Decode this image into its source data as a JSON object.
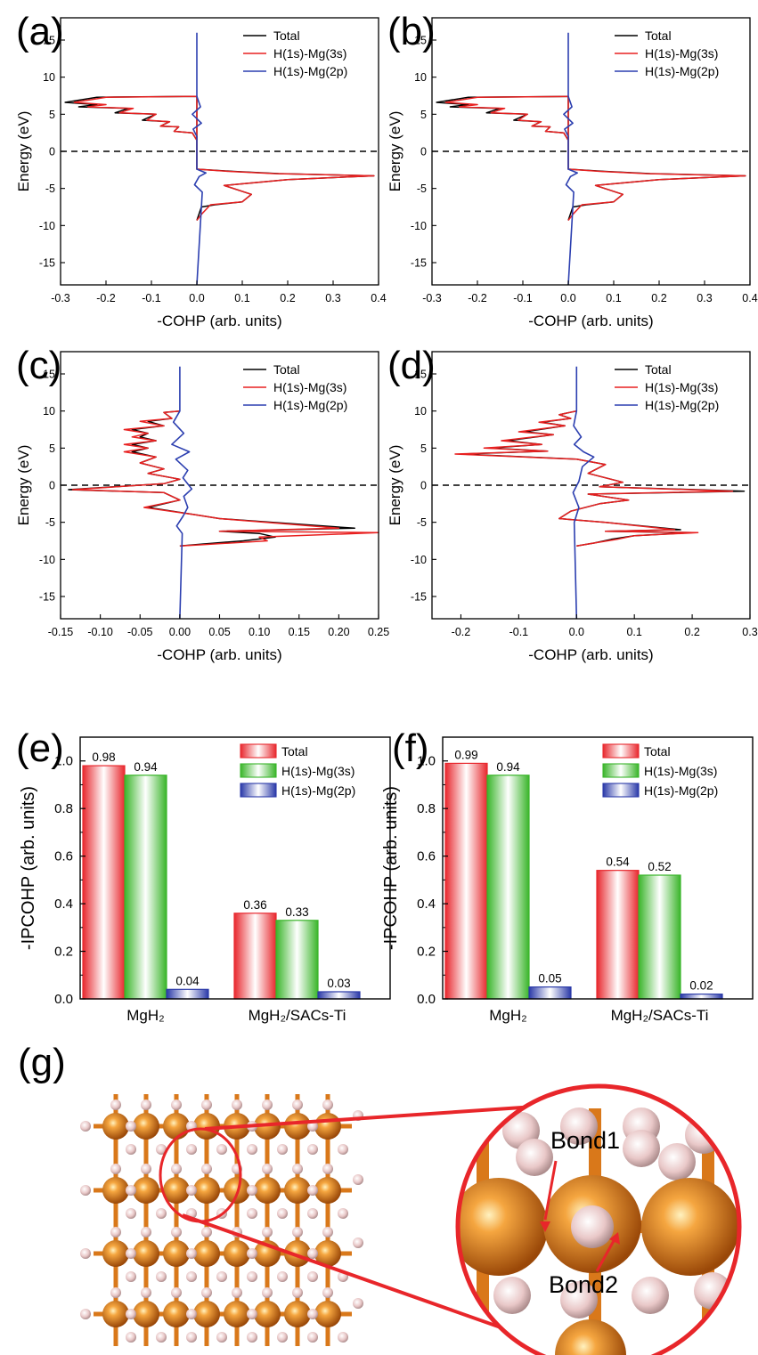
{
  "figure": {
    "panels": [
      "(a)",
      "(b)",
      "(c)",
      "(d)",
      "(e)",
      "(f)",
      "(g)"
    ]
  },
  "colors": {
    "total": "#000000",
    "s": "#e82020",
    "p": "#2c3fb0",
    "bar_red": "#e8282e",
    "bar_green": "#3ab52a",
    "bar_blue": "#2a39a8",
    "mg_atom": "#d9781a",
    "h_atom": "#e9c8c8",
    "zoom": "#e8262a"
  },
  "chart_data": [
    {
      "panel": "(a)",
      "type": "line",
      "xlabel": "-COHP (arb. units)",
      "ylabel": "Energy (eV)",
      "xlim": [
        -0.3,
        0.4
      ],
      "ylim": [
        -18,
        18
      ],
      "xticks": [
        "-0.3",
        "-0.2",
        "-0.1",
        "0.0",
        "0.1",
        "0.2",
        "0.3",
        "0.4"
      ],
      "yticks": [
        "15",
        "10",
        "5",
        "0",
        "-5",
        "-10",
        "-15"
      ],
      "fermi_level": 0,
      "legend": [
        "Total",
        "H(1s)-Mg(3s)",
        "H(1s)-Mg(2p)"
      ],
      "series": [
        {
          "name": "Total",
          "x": [
            0,
            -0.01,
            -0.05,
            -0.04,
            -0.08,
            -0.06,
            -0.12,
            -0.09,
            -0.18,
            -0.15,
            -0.26,
            -0.22,
            -0.29,
            -0.22,
            0,
            0,
            0.08,
            0.18,
            0.39,
            0.2,
            0.06,
            0.12,
            0.1,
            0.04,
            0.01,
            0
          ],
          "y": [
            1.5,
            2.5,
            2.7,
            3.3,
            3.4,
            4.0,
            4.2,
            5.0,
            5.2,
            5.8,
            6.0,
            6.3,
            6.6,
            7.3,
            7.4,
            -2.4,
            -2.7,
            -3.0,
            -3.3,
            -3.8,
            -4.6,
            -5.8,
            -6.8,
            -7.2,
            -7.5,
            -9.3
          ]
        },
        {
          "name": "H(1s)-Mg(3s)",
          "x": [
            0,
            -0.01,
            -0.05,
            -0.04,
            -0.08,
            -0.06,
            -0.11,
            -0.09,
            -0.17,
            -0.14,
            -0.24,
            -0.2,
            -0.27,
            -0.2,
            0,
            0,
            0.07,
            0.17,
            0.39,
            0.2,
            0.06,
            0.12,
            0.1,
            0.03,
            0.01,
            0
          ],
          "y": [
            1.5,
            2.5,
            2.7,
            3.3,
            3.4,
            4.0,
            4.2,
            5.0,
            5.2,
            5.8,
            6.0,
            6.3,
            6.6,
            7.3,
            7.4,
            -2.4,
            -2.7,
            -3.0,
            -3.3,
            -3.8,
            -4.6,
            -5.8,
            -6.8,
            -7.2,
            -8.5,
            -9.3
          ]
        },
        {
          "name": "H(1s)-Mg(2p)",
          "x": [
            0,
            0,
            0.008,
            -0.01,
            0.01,
            -0.008,
            0,
            0,
            0.02,
            0.005,
            -0.005,
            0.012,
            0
          ],
          "y": [
            16,
            7.4,
            6.0,
            5.0,
            3.8,
            3.0,
            2.0,
            -2.4,
            -2.9,
            -3.4,
            -4.5,
            -5.5,
            -18
          ]
        }
      ]
    },
    {
      "panel": "(b)",
      "type": "line",
      "xlabel": "-COHP (arb. units)",
      "ylabel": "Energy (eV)",
      "xlim": [
        -0.3,
        0.4
      ],
      "ylim": [
        -18,
        18
      ],
      "xticks": [
        "-0.3",
        "-0.2",
        "-0.1",
        "0.0",
        "0.1",
        "0.2",
        "0.3",
        "0.4"
      ],
      "yticks": [
        "15",
        "10",
        "5",
        "0",
        "-5",
        "-10",
        "-15"
      ],
      "fermi_level": 0,
      "legend": [
        "Total",
        "H(1s)-Mg(3s)",
        "H(1s)-Mg(2p)"
      ],
      "series": [
        {
          "name": "Total",
          "x": [
            0,
            -0.01,
            -0.05,
            -0.04,
            -0.08,
            -0.06,
            -0.12,
            -0.09,
            -0.18,
            -0.15,
            -0.26,
            -0.22,
            -0.29,
            -0.22,
            0,
            0,
            0.08,
            0.18,
            0.39,
            0.2,
            0.06,
            0.12,
            0.1,
            0.04,
            0.01,
            0
          ],
          "y": [
            1.5,
            2.5,
            2.7,
            3.3,
            3.4,
            4.0,
            4.2,
            5.0,
            5.2,
            5.8,
            6.0,
            6.3,
            6.6,
            7.3,
            7.4,
            -2.4,
            -2.7,
            -3.0,
            -3.3,
            -3.8,
            -4.6,
            -5.8,
            -6.8,
            -7.2,
            -7.5,
            -9.3
          ]
        },
        {
          "name": "H(1s)-Mg(3s)",
          "x": [
            0,
            -0.01,
            -0.05,
            -0.04,
            -0.08,
            -0.06,
            -0.11,
            -0.09,
            -0.17,
            -0.14,
            -0.24,
            -0.2,
            -0.27,
            -0.2,
            0,
            0,
            0.07,
            0.17,
            0.39,
            0.2,
            0.06,
            0.12,
            0.1,
            0.03,
            0.01,
            0
          ],
          "y": [
            1.5,
            2.5,
            2.7,
            3.3,
            3.4,
            4.0,
            4.2,
            5.0,
            5.2,
            5.8,
            6.0,
            6.3,
            6.6,
            7.3,
            7.4,
            -2.4,
            -2.7,
            -3.0,
            -3.3,
            -3.8,
            -4.6,
            -5.8,
            -6.8,
            -7.2,
            -8.5,
            -9.3
          ]
        },
        {
          "name": "H(1s)-Mg(2p)",
          "x": [
            0,
            0,
            0.008,
            -0.01,
            0.01,
            -0.008,
            0,
            0,
            0.02,
            0.005,
            -0.005,
            0.012,
            0
          ],
          "y": [
            16,
            7.4,
            6.0,
            5.0,
            3.8,
            3.0,
            2.0,
            -2.4,
            -2.9,
            -3.4,
            -4.5,
            -5.5,
            -18
          ]
        }
      ]
    },
    {
      "panel": "(c)",
      "type": "line",
      "xlabel": "-COHP (arb. units)",
      "ylabel": "Energy (eV)",
      "xlim": [
        -0.15,
        0.25
      ],
      "ylim": [
        -18,
        18
      ],
      "xticks": [
        "-0.15",
        "-0.10",
        "-0.05",
        "0.00",
        "0.05",
        "0.10",
        "0.15",
        "0.20",
        "0.25"
      ],
      "yticks": [
        "15",
        "10",
        "5",
        "0",
        "-5",
        "-10",
        "-15"
      ],
      "fermi_level": 0,
      "legend": [
        "Total",
        "H(1s)-Mg(3s)",
        "H(1s)-Mg(2p)"
      ],
      "series": [
        {
          "name": "Total",
          "x": [
            0,
            -0.02,
            -0.01,
            -0.04,
            -0.02,
            -0.06,
            -0.04,
            -0.05,
            -0.03,
            -0.06,
            -0.04,
            -0.06,
            -0.03,
            -0.05,
            -0.02,
            -0.04,
            0,
            -0.02,
            -0.14,
            -0.02,
            0,
            -0.04,
            0.02,
            0.05,
            0.22,
            0.05,
            0.1,
            0.12,
            0.08,
            0.02,
            0
          ],
          "y": [
            10,
            9.8,
            9.0,
            8.6,
            8.0,
            7.5,
            7.0,
            6.5,
            6.0,
            5.5,
            5.0,
            4.5,
            3.8,
            3.0,
            2.2,
            1.6,
            0.8,
            0.2,
            -0.6,
            -1.0,
            -2.0,
            -3.0,
            -4.0,
            -4.5,
            -5.8,
            -6.2,
            -6.5,
            -7.0,
            -7.5,
            -8.0,
            -8.2
          ]
        },
        {
          "name": "H(1s)-Mg(3s)",
          "x": [
            0,
            -0.02,
            -0.01,
            -0.05,
            -0.02,
            -0.07,
            -0.04,
            -0.06,
            -0.03,
            -0.07,
            -0.04,
            -0.07,
            -0.03,
            -0.05,
            -0.02,
            -0.04,
            0,
            -0.02,
            -0.135,
            -0.02,
            0,
            -0.045,
            0.02,
            0.05,
            0.2,
            0.05,
            0.25,
            0.1,
            0.11,
            0.03,
            0
          ],
          "y": [
            10,
            9.8,
            9.0,
            8.6,
            8.0,
            7.5,
            7.0,
            6.5,
            6.0,
            5.5,
            5.0,
            4.5,
            3.8,
            3.0,
            2.2,
            1.6,
            0.8,
            0.2,
            -0.6,
            -1.0,
            -2.0,
            -3.0,
            -4.0,
            -4.5,
            -5.8,
            -6.2,
            -6.4,
            -7.0,
            -7.5,
            -8.0,
            -8.2
          ]
        },
        {
          "name": "H(1s)-Mg(2p)",
          "x": [
            0,
            0,
            -0.008,
            0.005,
            -0.01,
            0.012,
            -0.005,
            0.01,
            0.004,
            0.015,
            0.005,
            0.01,
            0.004,
            -0.004,
            0.003,
            0
          ],
          "y": [
            16,
            10,
            8.5,
            7.0,
            5.5,
            4.5,
            3.5,
            2.0,
            1.0,
            -0.5,
            -1.5,
            -3.0,
            -4.2,
            -5.5,
            -6.5,
            -18
          ]
        }
      ]
    },
    {
      "panel": "(d)",
      "type": "line",
      "xlabel": "-COHP (arb. units)",
      "ylabel": "Energy (eV)",
      "xlim": [
        -0.25,
        0.3
      ],
      "ylim": [
        -18,
        18
      ],
      "xticks": [
        "-0.2",
        "-0.1",
        "0.0",
        "0.1",
        "0.2",
        "0.3"
      ],
      "yticks": [
        "15",
        "10",
        "5",
        "0",
        "-5",
        "-10",
        "-15"
      ],
      "fermi_level": 0,
      "legend": [
        "Total",
        "H(1s)-Mg(3s)",
        "H(1s)-Mg(2p)"
      ],
      "series": [
        {
          "name": "Total",
          "x": [
            0,
            -0.03,
            -0.01,
            -0.06,
            -0.02,
            -0.09,
            -0.04,
            -0.12,
            -0.06,
            -0.15,
            -0.05,
            -0.2,
            0,
            0.05,
            0.02,
            0.08,
            0.04,
            0.29,
            0.02,
            0.09,
            0.04,
            -0.01,
            -0.03,
            0.05,
            0.18,
            0.05,
            0.2,
            0.1,
            0.06,
            0.03,
            0
          ],
          "y": [
            10,
            9.5,
            9.0,
            8.5,
            8.0,
            7.2,
            6.8,
            6.0,
            5.5,
            5.0,
            4.6,
            4.2,
            3.5,
            2.8,
            1.6,
            0.4,
            -0.2,
            -0.8,
            -1.2,
            -2.0,
            -2.5,
            -3.5,
            -4.5,
            -5.0,
            -6.0,
            -6.2,
            -6.4,
            -6.8,
            -7.3,
            -7.8,
            -8.2
          ]
        },
        {
          "name": "H(1s)-Mg(3s)",
          "x": [
            0,
            -0.03,
            -0.01,
            -0.065,
            -0.02,
            -0.1,
            -0.04,
            -0.13,
            -0.06,
            -0.16,
            -0.05,
            -0.21,
            0,
            0.05,
            0.02,
            0.08,
            0.04,
            0.27,
            0.02,
            0.09,
            0.04,
            -0.01,
            -0.03,
            0.05,
            0.17,
            0.05,
            0.21,
            0.1,
            0.07,
            0.03,
            0
          ],
          "y": [
            10,
            9.5,
            9.0,
            8.5,
            8.0,
            7.2,
            6.8,
            6.0,
            5.5,
            5.0,
            4.6,
            4.2,
            3.5,
            2.8,
            1.6,
            0.4,
            -0.2,
            -0.8,
            -1.2,
            -2.0,
            -2.5,
            -3.5,
            -4.5,
            -5.0,
            -6.0,
            -6.2,
            -6.4,
            -6.8,
            -7.3,
            -7.8,
            -8.2
          ]
        },
        {
          "name": "H(1s)-Mg(2p)",
          "x": [
            0,
            0,
            -0.005,
            0.008,
            -0.004,
            0.012,
            0.03,
            0.01,
            0.004,
            -0.006,
            0.004,
            -0.004,
            0
          ],
          "y": [
            16,
            10,
            8.0,
            6.5,
            5.5,
            4.5,
            3.8,
            2.5,
            0.5,
            -1.0,
            -3.0,
            -5.0,
            -18
          ]
        }
      ]
    },
    {
      "panel": "(e)",
      "type": "bar",
      "ylabel": "-IPCOHP (arb. units)",
      "ylim": [
        0,
        1.1
      ],
      "yticks": [
        "0.0",
        "0.2",
        "0.4",
        "0.6",
        "0.8",
        "1.0"
      ],
      "categories": [
        "MgH₂",
        "MgH₂/SACs-Ti"
      ],
      "series": [
        {
          "name": "Total",
          "values": [
            0.98,
            0.36
          ],
          "labels": [
            "0.98",
            "0.36"
          ]
        },
        {
          "name": "H(1s)-Mg(3s)",
          "values": [
            0.94,
            0.33
          ],
          "labels": [
            "0.94",
            "0.33"
          ]
        },
        {
          "name": "H(1s)-Mg(2p)",
          "values": [
            0.04,
            0.03
          ],
          "labels": [
            "0.04",
            "0.03"
          ]
        }
      ]
    },
    {
      "panel": "(f)",
      "type": "bar",
      "ylabel": "-IPCOHP (arb. units)",
      "ylim": [
        0,
        1.1
      ],
      "yticks": [
        "0.0",
        "0.2",
        "0.4",
        "0.6",
        "0.8",
        "1.0"
      ],
      "categories": [
        "MgH₂",
        "MgH₂/SACs-Ti"
      ],
      "series": [
        {
          "name": "Total",
          "values": [
            0.99,
            0.54
          ],
          "labels": [
            "0.99",
            "0.54"
          ]
        },
        {
          "name": "H(1s)-Mg(3s)",
          "values": [
            0.94,
            0.52
          ],
          "labels": [
            "0.94",
            "0.52"
          ]
        },
        {
          "name": "H(1s)-Mg(2p)",
          "values": [
            0.05,
            0.02
          ],
          "labels": [
            "0.05",
            "0.02"
          ]
        }
      ]
    }
  ],
  "structure": {
    "bond1_label": "Bond1",
    "bond2_label": "Bond2"
  }
}
